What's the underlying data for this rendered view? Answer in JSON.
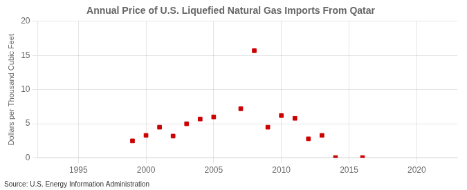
{
  "chart_data": {
    "type": "scatter",
    "title": "Annual Price of U.S. Liquefied Natural Gas Imports From Qatar",
    "y_label": "Dollars per Thousand Cubic Feet",
    "annotations": [
      "Source: U.S. Energy Information Administration"
    ],
    "x": [
      1999,
      2000,
      2001,
      2002,
      2003,
      2004,
      2005,
      2007,
      2008,
      2009,
      2010,
      2011,
      2012,
      2013,
      2014,
      2016
    ],
    "values": [
      2.5,
      3.3,
      4.5,
      3.2,
      5.0,
      5.7,
      6.0,
      7.2,
      15.7,
      4.5,
      6.2,
      5.8,
      2.8,
      3.3,
      0.05,
      0.05
    ],
    "xlim": [
      1992,
      2023
    ],
    "ylim": [
      0,
      20
    ],
    "xticks": [
      1995,
      2000,
      2005,
      2010,
      2015,
      2020
    ],
    "yticks": [
      0,
      5,
      10,
      15,
      20
    ],
    "color": "#cc0000",
    "marker": "square",
    "grid": true
  }
}
